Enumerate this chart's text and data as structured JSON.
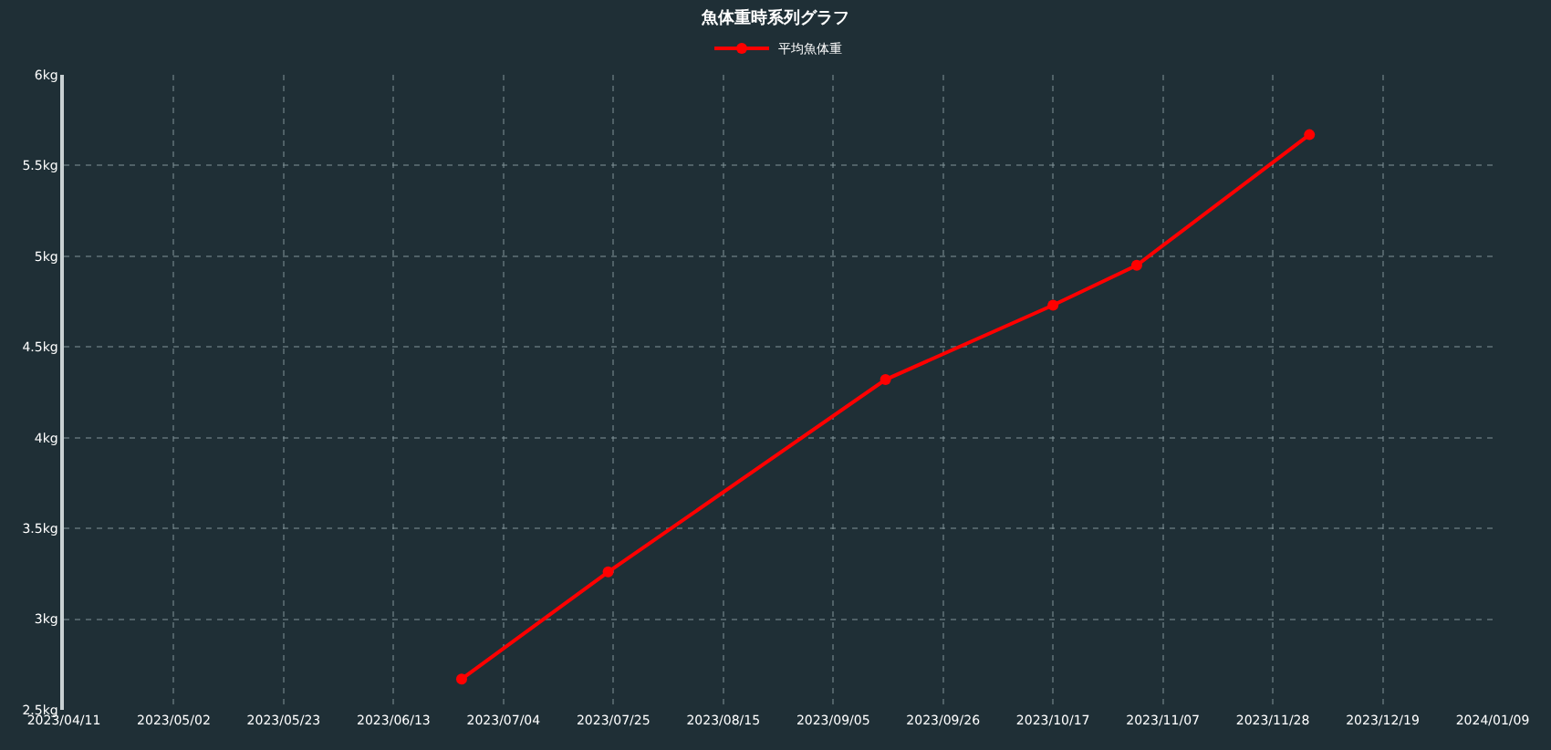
{
  "chart_data": {
    "type": "line",
    "title": "魚体重時系列グラフ",
    "x": [
      "2023-06-26",
      "2023-07-24",
      "2023-09-15",
      "2023-10-17",
      "2023-11-02",
      "2023-12-05"
    ],
    "series": [
      {
        "name": "平均魚体重",
        "color": "#ff0000",
        "values": [
          2.67,
          3.26,
          4.32,
          4.73,
          4.95,
          5.67
        ]
      }
    ],
    "xlim": [
      "2023-04-11",
      "2024-01-09"
    ],
    "xticks": [
      {
        "value": "2023-04-11",
        "label": "2023/04/11"
      },
      {
        "value": "2023-05-02",
        "label": "2023/05/02"
      },
      {
        "value": "2023-05-23",
        "label": "2023/05/23"
      },
      {
        "value": "2023-06-13",
        "label": "2023/06/13"
      },
      {
        "value": "2023-07-04",
        "label": "2023/07/04"
      },
      {
        "value": "2023-07-25",
        "label": "2023/07/25"
      },
      {
        "value": "2023-08-15",
        "label": "2023/08/15"
      },
      {
        "value": "2023-09-05",
        "label": "2023/09/05"
      },
      {
        "value": "2023-09-26",
        "label": "2023/09/26"
      },
      {
        "value": "2023-10-17",
        "label": "2023/10/17"
      },
      {
        "value": "2023-11-07",
        "label": "2023/11/07"
      },
      {
        "value": "2023-11-28",
        "label": "2023/11/28"
      },
      {
        "value": "2023-12-19",
        "label": "2023/12/19"
      },
      {
        "value": "2024-01-09",
        "label": "2024/01/09"
      }
    ],
    "ylim": [
      2.5,
      6
    ],
    "yticks": [
      {
        "value": 2.5,
        "label": "2.5kg"
      },
      {
        "value": 3,
        "label": "3kg"
      },
      {
        "value": 3.5,
        "label": "3.5kg"
      },
      {
        "value": 4,
        "label": "4kg"
      },
      {
        "value": 4.5,
        "label": "4.5kg"
      },
      {
        "value": 5,
        "label": "5kg"
      },
      {
        "value": 5.5,
        "label": "5.5kg"
      },
      {
        "value": 6,
        "label": "6kg"
      }
    ],
    "grid": true,
    "legend": "top",
    "marker": "circle",
    "line_style": "solid"
  }
}
